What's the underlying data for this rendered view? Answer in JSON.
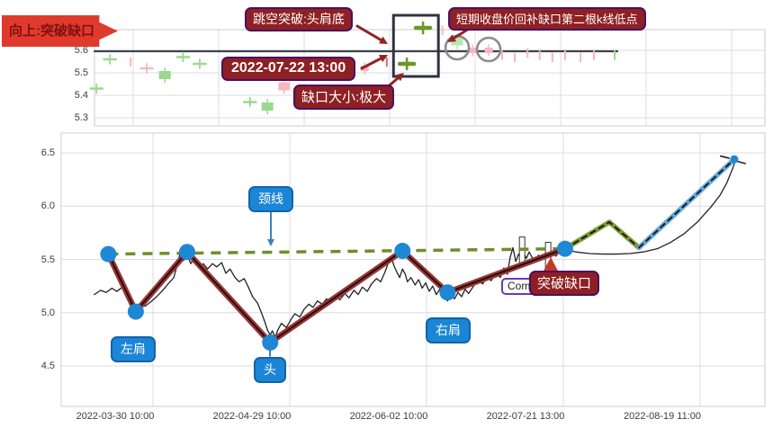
{
  "annotations": {
    "banner": "向上:突破缺口",
    "gap_break": "跳空突破:头肩底",
    "short_term": "短期收盘价回补缺口第二根k线低点",
    "datetime": "2022-07-22 13:00",
    "gap_size": "缺口大小:极大",
    "neckline": "颈线",
    "left_shoulder": "左肩",
    "head": "头",
    "right_shoulder": "右肩",
    "comment": "Comm",
    "breakout": "突破缺口"
  },
  "colors": {
    "red_label_bg": "#8e2023",
    "red_label_border": "#4a0f63",
    "banner_bg": "#e03a2c",
    "banner_text": "#7e1111",
    "blue_label_bg": "#1b86d6",
    "blue_label_border": "#1262ad",
    "grid": "#dcdcdc",
    "panel_border": "#cccccc",
    "gap_line": "#3d4450",
    "price_line": "#222222",
    "zigzag": "#9e3232",
    "neckline": "#6d8f2a",
    "forecast_green": "#7d9c31",
    "forecast_blue": "#64a9dd",
    "marker_dot": "#1e88d4",
    "circle": "#8c8c8c",
    "box": "#2e3440",
    "arrow_dark_red": "#8e2525",
    "arrow_bright_red": "#c23a2b",
    "arrow_blue": "#3b7fc4",
    "candle_green": "#9ad98d",
    "candle_pink": "#f5b7c0",
    "candle_red": "#e06c6c",
    "candle_dark_green": "#6a9a28",
    "candle_light_green": "#b8e6b0"
  },
  "chart_data": [
    {
      "panel": "top",
      "type": "candlestick",
      "ylim": [
        5.26,
        5.69
      ],
      "ytick_values": [
        5.6,
        5.5,
        5.4,
        5.3
      ],
      "ytick_labels": [
        "5.6",
        "5.5",
        "5.4",
        "5.3"
      ],
      "grid": true,
      "gap_level_line": {
        "value": 5.596,
        "x_from": 0.0,
        "x_to": 0.78
      },
      "candles": [
        [
          0.003,
          5.43,
          "g",
          "cross"
        ],
        [
          0.023,
          5.56,
          "g",
          "cross"
        ],
        [
          0.054,
          5.55,
          "p",
          "tick"
        ],
        [
          0.078,
          5.52,
          "p",
          "cross"
        ],
        [
          0.105,
          5.49,
          "g",
          "body-lg"
        ],
        [
          0.132,
          5.57,
          "g",
          "cross"
        ],
        [
          0.157,
          5.54,
          "g",
          "cross"
        ],
        [
          0.232,
          5.37,
          "g",
          "cross"
        ],
        [
          0.258,
          5.35,
          "g",
          "body-lg"
        ],
        [
          0.283,
          5.44,
          "p",
          "body-lg"
        ],
        [
          0.403,
          5.52,
          "p",
          "body"
        ],
        [
          0.436,
          5.55,
          "r",
          "tick"
        ],
        [
          0.466,
          5.54,
          "dg",
          "cross-bold"
        ],
        [
          0.49,
          5.7,
          "dg",
          "cross-bold"
        ],
        [
          0.519,
          5.69,
          "p",
          "tick"
        ],
        [
          0.541,
          5.64,
          "lg",
          "body-lg"
        ],
        [
          0.564,
          5.6,
          "p",
          "body"
        ],
        [
          0.588,
          5.6,
          "p",
          "body"
        ],
        [
          0.608,
          5.58,
          "p",
          "tick"
        ],
        [
          0.627,
          5.57,
          "p",
          "tick"
        ],
        [
          0.646,
          5.59,
          "p",
          "tick"
        ],
        [
          0.664,
          5.58,
          "p",
          "tick"
        ],
        [
          0.683,
          5.57,
          "p",
          "tick"
        ],
        [
          0.702,
          5.58,
          "p",
          "tick"
        ],
        [
          0.725,
          5.57,
          "p",
          "tick"
        ],
        [
          0.745,
          5.58,
          "p",
          "tick"
        ],
        [
          0.776,
          5.58,
          "g",
          "tick"
        ]
      ],
      "highlight_box": {
        "x1": 0.446,
        "x2": 0.513,
        "v1": 5.484,
        "v2": 5.756
      },
      "circles": [
        {
          "x": 0.541,
          "v": 5.612
        },
        {
          "x": 0.588,
          "v": 5.604
        }
      ]
    },
    {
      "panel": "bottom",
      "type": "line",
      "ylim": [
        4.12,
        6.69
      ],
      "ytick_values": [
        6.5,
        6.0,
        5.5,
        5.0,
        4.5
      ],
      "ytick_labels": [
        "6.5",
        "6.0",
        "5.5",
        "5.0",
        "4.5"
      ],
      "xtick_labels": [
        "2022-03-30 10:00",
        "2022-04-29 10:00",
        "2022-06-02 10:00",
        "2022-07-21 13:00",
        "2022-08-19 11:00"
      ],
      "grid": true,
      "price": [
        [
          0.047,
          5.17
        ],
        [
          0.056,
          5.21
        ],
        [
          0.064,
          5.19
        ],
        [
          0.072,
          5.23
        ],
        [
          0.079,
          5.2
        ],
        [
          0.087,
          5.24
        ],
        [
          0.093,
          5.16
        ],
        [
          0.1,
          5.08
        ],
        [
          0.106,
          5.03
        ],
        [
          0.113,
          5.09
        ],
        [
          0.119,
          5.06
        ],
        [
          0.127,
          5.1
        ],
        [
          0.134,
          5.14
        ],
        [
          0.143,
          5.2
        ],
        [
          0.152,
          5.27
        ],
        [
          0.16,
          5.33
        ],
        [
          0.165,
          5.45
        ],
        [
          0.169,
          5.56
        ],
        [
          0.174,
          5.49
        ],
        [
          0.179,
          5.55
        ],
        [
          0.184,
          5.46
        ],
        [
          0.189,
          5.51
        ],
        [
          0.196,
          5.42
        ],
        [
          0.202,
          5.46
        ],
        [
          0.208,
          5.41
        ],
        [
          0.215,
          5.46
        ],
        [
          0.221,
          5.43
        ],
        [
          0.228,
          5.47
        ],
        [
          0.234,
          5.37
        ],
        [
          0.24,
          5.41
        ],
        [
          0.247,
          5.33
        ],
        [
          0.253,
          5.29
        ],
        [
          0.26,
          5.32
        ],
        [
          0.266,
          5.24
        ],
        [
          0.272,
          5.15
        ],
        [
          0.279,
          5.09
        ],
        [
          0.284,
          5.01
        ],
        [
          0.289,
          4.92
        ],
        [
          0.293,
          4.84
        ],
        [
          0.297,
          4.79
        ],
        [
          0.3,
          4.83
        ],
        [
          0.304,
          4.77
        ],
        [
          0.308,
          4.84
        ],
        [
          0.313,
          4.9
        ],
        [
          0.32,
          4.86
        ],
        [
          0.326,
          4.93
        ],
        [
          0.332,
          4.99
        ],
        [
          0.339,
          4.96
        ],
        [
          0.345,
          5.03
        ],
        [
          0.352,
          5.08
        ],
        [
          0.358,
          5.05
        ],
        [
          0.364,
          5.11
        ],
        [
          0.371,
          5.08
        ],
        [
          0.377,
          5.13
        ],
        [
          0.384,
          5.1
        ],
        [
          0.39,
          5.16
        ],
        [
          0.396,
          5.12
        ],
        [
          0.403,
          5.18
        ],
        [
          0.409,
          5.14
        ],
        [
          0.416,
          5.21
        ],
        [
          0.422,
          5.17
        ],
        [
          0.428,
          5.24
        ],
        [
          0.435,
          5.2
        ],
        [
          0.441,
          5.27
        ],
        [
          0.448,
          5.32
        ],
        [
          0.454,
          5.29
        ],
        [
          0.46,
          5.38
        ],
        [
          0.465,
          5.47
        ],
        [
          0.469,
          5.52
        ],
        [
          0.473,
          5.44
        ],
        [
          0.477,
          5.38
        ],
        [
          0.481,
          5.33
        ],
        [
          0.485,
          5.41
        ],
        [
          0.489,
          5.36
        ],
        [
          0.492,
          5.29
        ],
        [
          0.497,
          5.33
        ],
        [
          0.503,
          5.26
        ],
        [
          0.508,
          5.31
        ],
        [
          0.513,
          5.23
        ],
        [
          0.518,
          5.28
        ],
        [
          0.523,
          5.2
        ],
        [
          0.528,
          5.25
        ],
        [
          0.533,
          5.17
        ],
        [
          0.538,
          5.22
        ],
        [
          0.543,
          5.15
        ],
        [
          0.549,
          5.11
        ],
        [
          0.554,
          5.17
        ],
        [
          0.559,
          5.13
        ],
        [
          0.564,
          5.19
        ],
        [
          0.569,
          5.15
        ],
        [
          0.574,
          5.22
        ],
        [
          0.579,
          5.18
        ],
        [
          0.586,
          5.25
        ],
        [
          0.592,
          5.3
        ],
        [
          0.599,
          5.27
        ],
        [
          0.605,
          5.34
        ],
        [
          0.611,
          5.3
        ],
        [
          0.618,
          5.38
        ],
        [
          0.624,
          5.33
        ],
        [
          0.629,
          5.42
        ],
        [
          0.634,
          5.36
        ],
        [
          0.638,
          5.52
        ],
        [
          0.642,
          5.61
        ],
        [
          0.646,
          5.48
        ],
        [
          0.65,
          5.55
        ],
        [
          0.654,
          5.5
        ],
        [
          0.657,
          5.56
        ],
        [
          0.661,
          5.51
        ],
        [
          0.665,
          5.57
        ],
        [
          0.669,
          5.52
        ],
        [
          0.673,
          5.48
        ],
        [
          0.678,
          5.54
        ],
        [
          0.683,
          5.5
        ],
        [
          0.688,
          5.56
        ],
        [
          0.693,
          5.52
        ],
        [
          0.698,
          5.57
        ],
        [
          0.703,
          5.53
        ],
        [
          0.708,
          5.58
        ],
        [
          0.716,
          5.6
        ],
        [
          0.731,
          5.57
        ],
        [
          0.751,
          5.555
        ],
        [
          0.77,
          5.55
        ],
        [
          0.789,
          5.55
        ],
        [
          0.808,
          5.555
        ],
        [
          0.827,
          5.57
        ],
        [
          0.847,
          5.6
        ],
        [
          0.866,
          5.66
        ],
        [
          0.885,
          5.74
        ],
        [
          0.904,
          5.85
        ],
        [
          0.923,
          5.99
        ],
        [
          0.936,
          6.1
        ],
        [
          0.946,
          6.22
        ],
        [
          0.954,
          6.35
        ],
        [
          0.958,
          6.43
        ]
      ],
      "zigzag": [
        [
          0.067,
          5.55
        ],
        [
          0.106,
          5.01
        ],
        [
          0.179,
          5.57
        ],
        [
          0.297,
          4.72
        ],
        [
          0.485,
          5.58
        ],
        [
          0.549,
          5.19
        ],
        [
          0.716,
          5.6
        ]
      ],
      "neckline": [
        [
          0.067,
          5.55
        ],
        [
          0.716,
          5.6
        ]
      ],
      "forecast_green": [
        [
          0.716,
          5.6
        ],
        [
          0.779,
          5.85
        ],
        [
          0.821,
          5.61
        ]
      ],
      "forecast_blue": [
        [
          0.821,
          5.61
        ],
        [
          0.9565,
          6.44
        ]
      ],
      "spike_bars": [
        {
          "x": 0.655,
          "v1": 5.44,
          "v2": 5.71
        },
        {
          "x": 0.692,
          "v1": 5.4,
          "v2": 5.66
        }
      ],
      "end_marks": [
        [
          [
            0.937,
            6.47
          ],
          [
            0.949,
            6.45
          ]
        ],
        [
          [
            0.961,
            6.42
          ],
          [
            0.972,
            6.4
          ]
        ]
      ],
      "key_points": {
        "left_peak": 5.55,
        "left_shoulder": 5.01,
        "mid_peak": 5.57,
        "head": 4.72,
        "right_peak": 5.58,
        "right_shoulder": 5.19,
        "breakout": 5.6,
        "forecast_top": 5.85,
        "forecast_dip": 5.61,
        "target": 6.44
      }
    }
  ]
}
